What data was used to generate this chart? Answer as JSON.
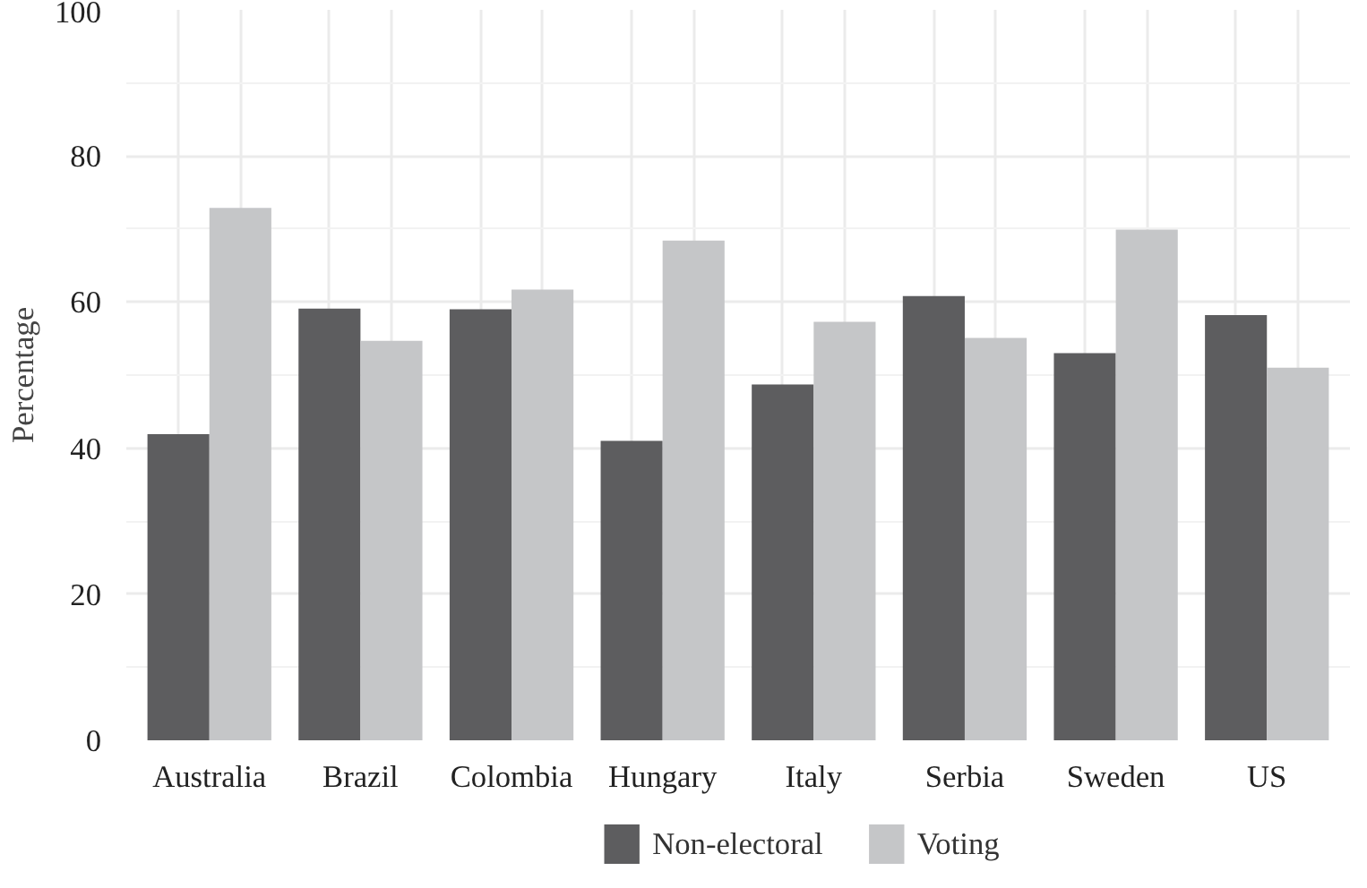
{
  "chart_data": {
    "type": "bar",
    "ylabel": "Percentage",
    "categories": [
      "Australia",
      "Brazil",
      "Colombia",
      "Hungary",
      "Italy",
      "Serbia",
      "Sweden",
      "US"
    ],
    "series": [
      {
        "name": "Non-electoral",
        "color": "#5d5d5f",
        "values": [
          41.9,
          59.1,
          59.0,
          41.0,
          48.7,
          60.8,
          53.0,
          58.2
        ]
      },
      {
        "name": "Voting",
        "color": "#c5c6c8",
        "values": [
          72.9,
          54.7,
          61.7,
          68.4,
          57.3,
          55.1,
          69.9,
          51.0
        ]
      }
    ],
    "ylim": [
      0,
      100
    ],
    "yticks": [
      0,
      20,
      40,
      60,
      80,
      100
    ],
    "grid": true,
    "legend": "bottom"
  }
}
